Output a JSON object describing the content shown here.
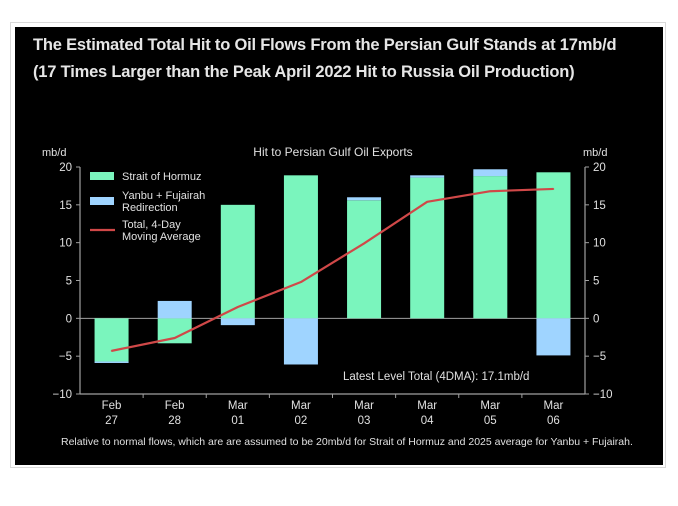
{
  "title": "The Estimated Total Hit to Oil Flows From the Persian Gulf Stands at 17mb/d (17 Times Larger than the Peak April 2022 Hit to Russia Oil Production)",
  "footnote": "Relative to normal flows, which are are assumed to be 20mb/d for Strait of Hormuz and 2025 average for Yanbu + Fujairah.",
  "colors": {
    "hormuz": "#7af5bd",
    "yanbu": "#9fd4ff",
    "line": "#d04848",
    "background": "#000000",
    "axis": "#a0a0a0"
  },
  "chart_data": {
    "type": "bar",
    "stacked": true,
    "title": "Hit to Persian Gulf Oil Exports",
    "ylabel_left": "mb/d",
    "ylabel_right": "mb/d",
    "ylim": [
      -10,
      20
    ],
    "yticks": [
      20,
      15,
      10,
      5,
      0,
      -5,
      -10
    ],
    "ytick_labels": [
      "20",
      "15",
      "10",
      "5",
      "0",
      "−5",
      "−10"
    ],
    "categories": [
      [
        "Feb",
        "27"
      ],
      [
        "Feb",
        "28"
      ],
      [
        "Mar",
        "01"
      ],
      [
        "Mar",
        "02"
      ],
      [
        "Mar",
        "03"
      ],
      [
        "Mar",
        "04"
      ],
      [
        "Mar",
        "05"
      ],
      [
        "Mar",
        "06"
      ]
    ],
    "series": [
      {
        "name": "Strait of Hormuz",
        "type": "bar",
        "values": [
          -5.7,
          -3.3,
          15.0,
          18.9,
          15.6,
          18.6,
          18.8,
          19.3
        ]
      },
      {
        "name": "Yanbu + Fujairah Redirection",
        "type": "bar",
        "values": [
          -0.2,
          2.3,
          -0.9,
          -6.1,
          0.4,
          0.3,
          0.9,
          -4.9
        ]
      },
      {
        "name": "Total, 4-Day Moving Average",
        "type": "line",
        "values": [
          -4.3,
          -2.6,
          1.5,
          4.8,
          9.9,
          15.4,
          16.8,
          17.1
        ]
      }
    ],
    "legend": {
      "position": "top-left",
      "entries": [
        {
          "lines": [
            "Strait of Hormuz"
          ],
          "kind": "hormuz"
        },
        {
          "lines": [
            "Yanbu + Fujairah",
            "Redirection"
          ],
          "kind": "yanbu"
        },
        {
          "lines": [
            "Total, 4-Day",
            "Moving Average"
          ],
          "kind": "line"
        }
      ]
    },
    "annotation": "Latest Level Total (4DMA): 17.1mb/d",
    "grid": false
  }
}
